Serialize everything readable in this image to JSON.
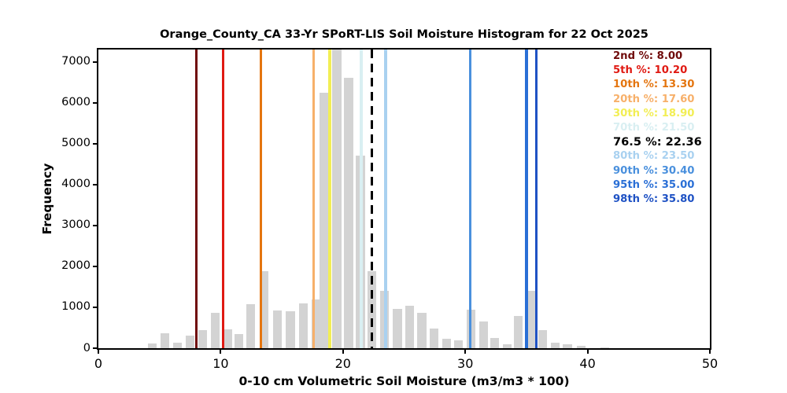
{
  "figure": {
    "background": "#ffffff"
  },
  "chart_data": {
    "type": "bar",
    "title": "Orange_County_CA 33-Yr SPoRT-LIS Soil Moisture Histogram for 22 Oct 2025",
    "xlabel": "0-10 cm Volumetric Soil Moisture (m3/m3 * 100)",
    "ylabel": "Frequency",
    "xlim": [
      0,
      50
    ],
    "ylim": [
      0,
      7300
    ],
    "xticks": [
      0,
      10,
      20,
      30,
      40,
      50
    ],
    "yticks": [
      0,
      1000,
      2000,
      3000,
      4000,
      5000,
      6000,
      7000
    ],
    "grid": false,
    "bar_color": "#d3d3d3",
    "bar_width_units": 0.72,
    "bars": [
      {
        "x": 4.43,
        "freq": 110
      },
      {
        "x": 5.46,
        "freq": 370
      },
      {
        "x": 6.47,
        "freq": 130
      },
      {
        "x": 7.48,
        "freq": 310
      },
      {
        "x": 8.51,
        "freq": 450
      },
      {
        "x": 9.53,
        "freq": 860
      },
      {
        "x": 10.55,
        "freq": 470
      },
      {
        "x": 11.51,
        "freq": 350
      },
      {
        "x": 12.48,
        "freq": 1070
      },
      {
        "x": 13.55,
        "freq": 1890
      },
      {
        "x": 14.65,
        "freq": 930
      },
      {
        "x": 15.7,
        "freq": 910
      },
      {
        "x": 16.75,
        "freq": 1090
      },
      {
        "x": 17.78,
        "freq": 1200
      },
      {
        "x": 18.46,
        "freq": 6250
      },
      {
        "x": 19.5,
        "freq": 7300
      },
      {
        "x": 20.46,
        "freq": 6600
      },
      {
        "x": 21.43,
        "freq": 4700
      },
      {
        "x": 22.35,
        "freq": 1890
      },
      {
        "x": 23.4,
        "freq": 1400
      },
      {
        "x": 24.45,
        "freq": 960
      },
      {
        "x": 25.45,
        "freq": 1040
      },
      {
        "x": 26.45,
        "freq": 860
      },
      {
        "x": 27.45,
        "freq": 490
      },
      {
        "x": 28.45,
        "freq": 240
      },
      {
        "x": 29.45,
        "freq": 190
      },
      {
        "x": 30.45,
        "freq": 950
      },
      {
        "x": 31.5,
        "freq": 660
      },
      {
        "x": 32.4,
        "freq": 260
      },
      {
        "x": 33.45,
        "freq": 90
      },
      {
        "x": 34.35,
        "freq": 790
      },
      {
        "x": 35.37,
        "freq": 1400
      },
      {
        "x": 36.35,
        "freq": 440
      },
      {
        "x": 37.35,
        "freq": 130
      },
      {
        "x": 38.35,
        "freq": 90
      },
      {
        "x": 39.45,
        "freq": 50
      },
      {
        "x": 41.4,
        "freq": 25
      }
    ],
    "percentile_lines": [
      {
        "name": "2nd-pct",
        "text": "2nd %: 8.00",
        "value": 8.0,
        "color": "#700b0b",
        "dashed": false,
        "emphasis": false
      },
      {
        "name": "5th-pct",
        "text": "5th %: 10.20",
        "value": 10.2,
        "color": "#e01a13",
        "dashed": false,
        "emphasis": false
      },
      {
        "name": "10th-pct",
        "text": "10th %: 13.30",
        "value": 13.3,
        "color": "#e4750f",
        "dashed": false,
        "emphasis": false
      },
      {
        "name": "20th-pct",
        "text": "20th %: 17.60",
        "value": 17.6,
        "color": "#f7b06a",
        "dashed": false,
        "emphasis": false
      },
      {
        "name": "30th-pct",
        "text": "30th %: 18.90",
        "value": 18.9,
        "color": "#f2ee54",
        "dashed": false,
        "emphasis": false
      },
      {
        "name": "70th-pct",
        "text": "70th %: 21.50",
        "value": 21.5,
        "color": "#d9eff2",
        "dashed": false,
        "emphasis": false
      },
      {
        "name": "76.5-pct",
        "text": "76.5 %: 22.36",
        "value": 22.36,
        "color": "#000000",
        "dashed": true,
        "emphasis": true
      },
      {
        "name": "80th-pct",
        "text": "80th %: 23.50",
        "value": 23.5,
        "color": "#a9d1f0",
        "dashed": false,
        "emphasis": false
      },
      {
        "name": "90th-pct",
        "text": "90th %: 30.40",
        "value": 30.4,
        "color": "#4a90dd",
        "dashed": false,
        "emphasis": false
      },
      {
        "name": "95th-pct",
        "text": "95th %: 35.00",
        "value": 35.0,
        "color": "#2a6fd6",
        "dashed": false,
        "emphasis": false
      },
      {
        "name": "98th-pct",
        "text": "98th %: 35.80",
        "value": 35.8,
        "color": "#1f52c4",
        "dashed": false,
        "emphasis": false
      }
    ],
    "legend_position": "upper right"
  }
}
